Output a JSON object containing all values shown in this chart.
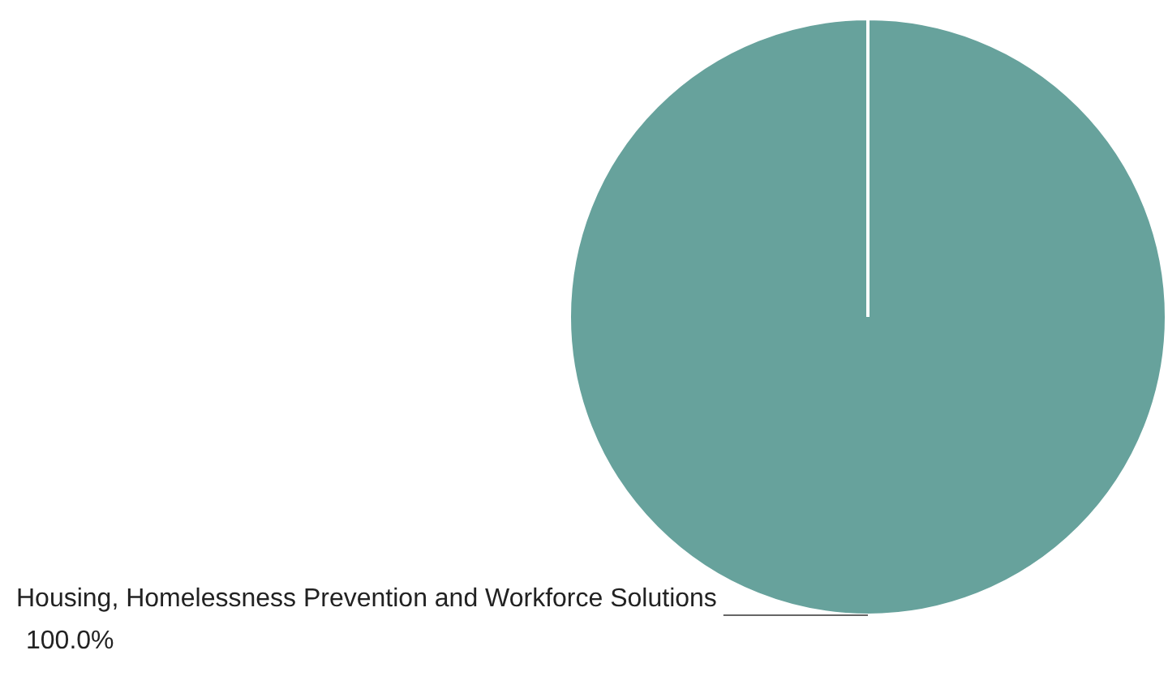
{
  "chart_data": {
    "type": "pie",
    "categories": [
      "Housing, Homelessness Prevention and Workforce Solutions"
    ],
    "values": [
      100
    ],
    "colors": [
      "#67a29c"
    ],
    "value_labels": [
      "100.0%"
    ],
    "legend": false
  }
}
